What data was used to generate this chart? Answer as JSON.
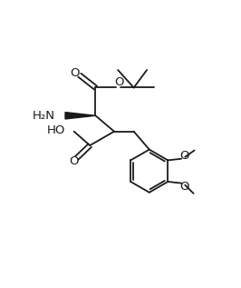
{
  "figsize": [
    2.66,
    3.17
  ],
  "dpi": 100,
  "bg_color": "#ffffff",
  "line_color": "#1a1a1a",
  "line_width": 1.3,
  "font_size": 8.5,
  "xlim": [
    0,
    10
  ],
  "ylim": [
    0,
    11.9
  ]
}
